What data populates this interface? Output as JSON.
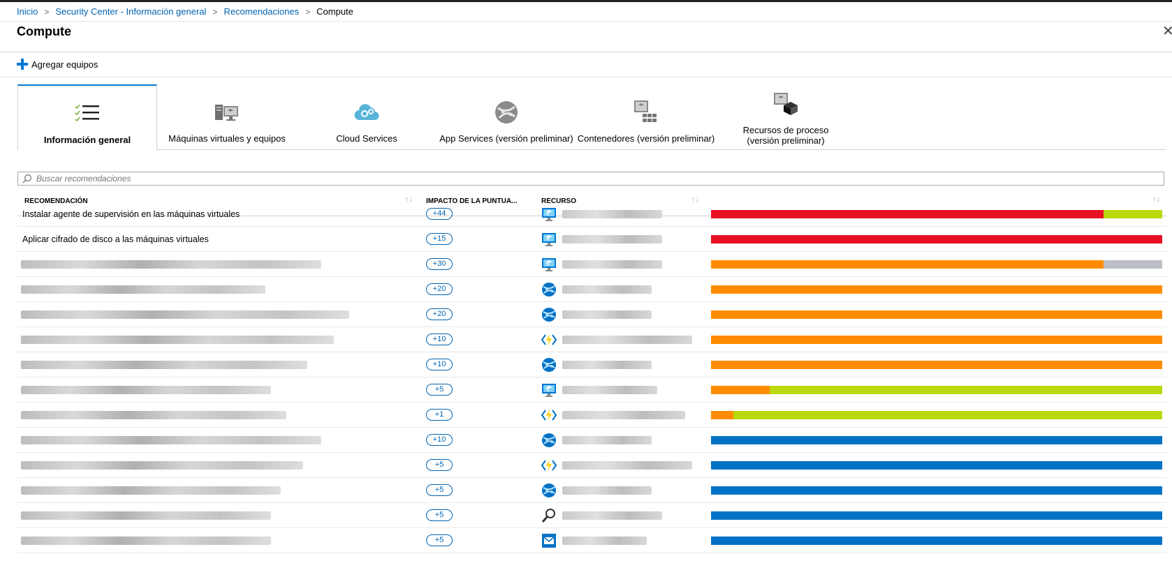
{
  "breadcrumb": [
    "Inicio",
    "Security Center - Información general",
    "Recomendaciones",
    "Compute"
  ],
  "page_title": "Compute",
  "toolbar": {
    "add_label": "Agregar equipos"
  },
  "tabs": [
    {
      "label": "Información general",
      "icon": "checklist-icon",
      "active": true
    },
    {
      "label": "Máquinas virtuales y equipos",
      "icon": "virtual-machines-icon"
    },
    {
      "label": "Cloud Services",
      "icon": "cloud-services-icon"
    },
    {
      "label": "App Services (versión preliminar)",
      "icon": "app-services-icon"
    },
    {
      "label": "Contenedores (versión preliminar)",
      "icon": "containers-icon"
    },
    {
      "label": "Recursos de proceso (versión preliminar)",
      "icon": "compute-resources-icon"
    }
  ],
  "search": {
    "placeholder": "Buscar recomendaciones"
  },
  "table": {
    "headers": [
      "RECOMENDACIÓN",
      "IMPACTO DE LA PUNTUA...",
      "RECURSO"
    ],
    "rows": [
      {
        "recommendation": "Instalar agente de supervisión en las máquinas virtuales",
        "impact": "+44",
        "icon": "virtual-machine-icon",
        "bar": [
          [
            "red",
            0.87
          ],
          [
            "lime",
            0.13
          ]
        ]
      },
      {
        "recommendation": "Aplicar cifrado de disco a las máquinas virtuales",
        "impact": "+15",
        "icon": "virtual-machine-icon",
        "bar": [
          [
            "red",
            1.0
          ]
        ]
      },
      {
        "recommendation": "",
        "impact": "+30",
        "icon": "virtual-machine-icon",
        "bar": [
          [
            "orange",
            0.87
          ],
          [
            "gray",
            0.13
          ]
        ]
      },
      {
        "recommendation": "",
        "impact": "+20",
        "icon": "app-service-icon",
        "bar": [
          [
            "orange",
            1.0
          ]
        ]
      },
      {
        "recommendation": "",
        "impact": "+20",
        "icon": "app-service-icon",
        "bar": [
          [
            "orange",
            1.0
          ]
        ]
      },
      {
        "recommendation": "",
        "impact": "+10",
        "icon": "function-app-icon",
        "bar": [
          [
            "orange",
            1.0
          ]
        ]
      },
      {
        "recommendation": "",
        "impact": "+10",
        "icon": "app-service-icon",
        "bar": [
          [
            "orange",
            1.0
          ]
        ]
      },
      {
        "recommendation": "",
        "impact": "+5",
        "icon": "virtual-machine-icon",
        "bar": [
          [
            "orange",
            0.13
          ],
          [
            "lime",
            0.87
          ]
        ]
      },
      {
        "recommendation": "",
        "impact": "+1",
        "icon": "function-app-icon",
        "bar": [
          [
            "orange",
            0.05
          ],
          [
            "lime",
            0.95
          ]
        ]
      },
      {
        "recommendation": "",
        "impact": "+10",
        "icon": "app-service-icon",
        "bar": [
          [
            "blue",
            1.0
          ]
        ]
      },
      {
        "recommendation": "",
        "impact": "+5",
        "icon": "function-app-icon",
        "bar": [
          [
            "blue",
            1.0
          ]
        ]
      },
      {
        "recommendation": "",
        "impact": "+5",
        "icon": "app-service-icon",
        "bar": [
          [
            "blue",
            1.0
          ]
        ]
      },
      {
        "recommendation": "",
        "impact": "+5",
        "icon": "search-service-icon",
        "bar": [
          [
            "blue",
            1.0
          ]
        ]
      },
      {
        "recommendation": "",
        "impact": "+5",
        "icon": "mail-service-icon",
        "bar": [
          [
            "blue",
            1.0
          ]
        ]
      }
    ]
  },
  "colors": {
    "red": "#e81123",
    "orange": "#ff8c00",
    "lime": "#bad80a",
    "gray": "#bcc0c6",
    "blue": "#0072c6",
    "link": "#0063b1",
    "accent": "#0078d4"
  }
}
